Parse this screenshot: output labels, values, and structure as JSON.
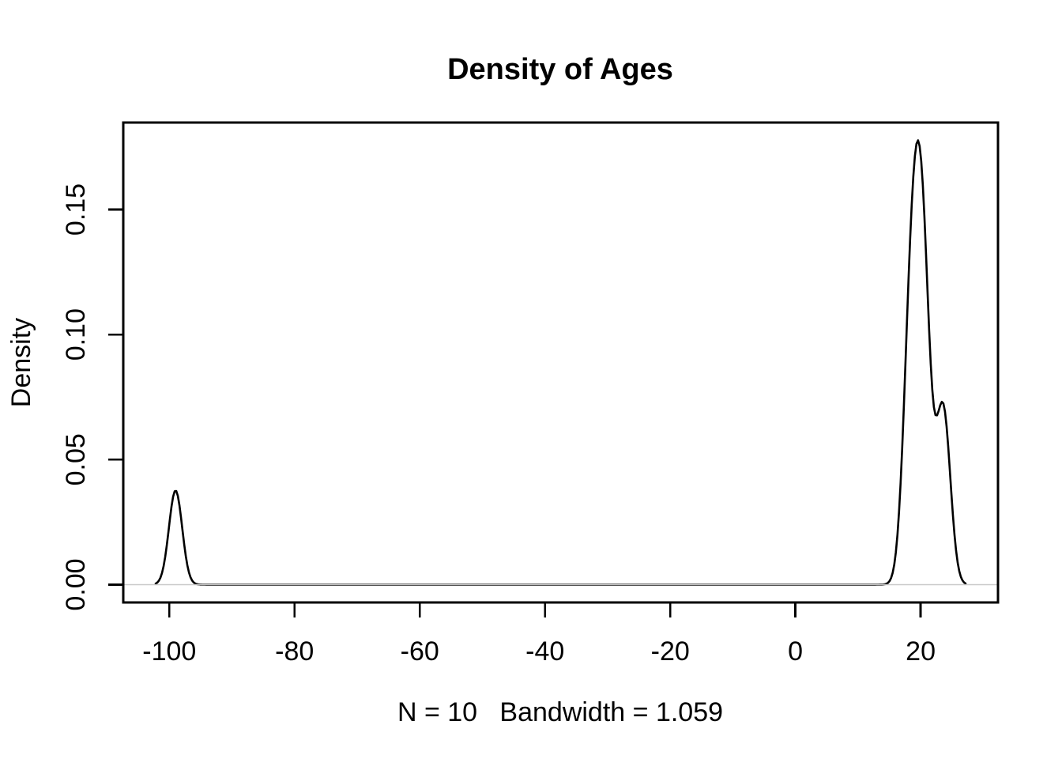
{
  "chart_data": {
    "type": "line",
    "subtype": "kernel-density-estimate",
    "title": "Density of Ages",
    "xlabel": "N = 10   Bandwidth = 1.059",
    "ylabel": "Density",
    "n": 10,
    "bandwidth": 1.059,
    "kernel": "gaussian",
    "data_points_estimated": [
      -99,
      17.8,
      18.5,
      19,
      19.5,
      20,
      20.5,
      21,
      23.2,
      24
    ],
    "x_ticks": {
      "values": [
        -100,
        -80,
        -60,
        -40,
        -20,
        0,
        20
      ],
      "labels": [
        "-100",
        "-80",
        "-60",
        "-40",
        "-20",
        "0",
        "20"
      ]
    },
    "y_ticks": {
      "values": [
        0,
        0.05,
        0.1,
        0.15
      ],
      "labels": [
        "0.00",
        "0.05",
        "0.10",
        "0.15"
      ]
    },
    "x_eval_range": [
      -102.18,
      27.18
    ],
    "ylim": [
      0,
      0.178
    ],
    "curve_features": {
      "small_peak": {
        "x": -99,
        "height": 0.038
      },
      "main_peak": {
        "x": 19.3,
        "height": 0.178
      },
      "shoulder_dip": {
        "x": 22.3,
        "height": 0.067
      },
      "shoulder_bump": {
        "x": 23.5,
        "height": 0.07
      }
    },
    "grid": false,
    "legend": "none",
    "colors": {
      "curve": "#000000",
      "axis": "#000000",
      "zero_line": "#c9c9c9",
      "background": "#ffffff"
    }
  }
}
